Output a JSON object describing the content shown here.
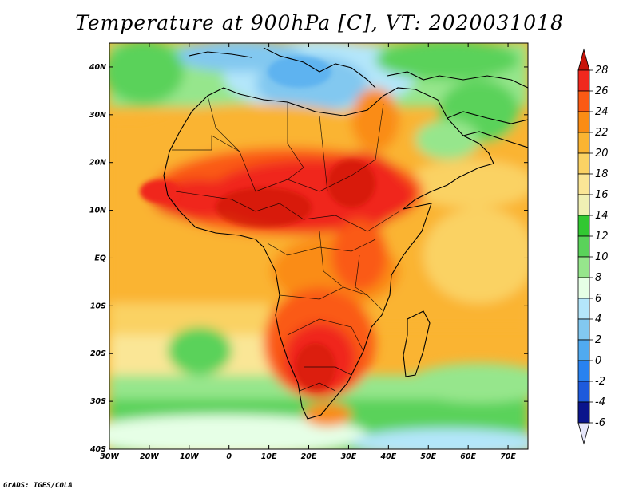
{
  "title": "Temperature at 900hPa [C], VT: 2020031018",
  "credit": "GrADS: IGES/COLA",
  "map": {
    "lon_range": [
      -30,
      75
    ],
    "lat_range": [
      -40,
      45
    ],
    "lon_ticks": [
      {
        "value": -30,
        "label": "30W"
      },
      {
        "value": -20,
        "label": "20W"
      },
      {
        "value": -10,
        "label": "10W"
      },
      {
        "value": 0,
        "label": "0"
      },
      {
        "value": 10,
        "label": "10E"
      },
      {
        "value": 20,
        "label": "20E"
      },
      {
        "value": 30,
        "label": "30E"
      },
      {
        "value": 40,
        "label": "40E"
      },
      {
        "value": 50,
        "label": "50E"
      },
      {
        "value": 60,
        "label": "60E"
      },
      {
        "value": 70,
        "label": "70E"
      }
    ],
    "lat_ticks": [
      {
        "value": 40,
        "label": "40N"
      },
      {
        "value": 30,
        "label": "30N"
      },
      {
        "value": 20,
        "label": "20N"
      },
      {
        "value": 10,
        "label": "10N"
      },
      {
        "value": 0,
        "label": "EQ"
      },
      {
        "value": -10,
        "label": "10S"
      },
      {
        "value": -20,
        "label": "20S"
      },
      {
        "value": -30,
        "label": "30S"
      },
      {
        "value": -40,
        "label": "40S"
      }
    ]
  },
  "colorbar": {
    "levels": [
      "28",
      "26",
      "24",
      "22",
      "20",
      "18",
      "16",
      "14",
      "12",
      "10",
      "8",
      "6",
      "4",
      "2",
      "0",
      "-2",
      "-4",
      "-6"
    ],
    "colors": [
      "#f0281e",
      "#fa5a14",
      "#fa8c14",
      "#fab432",
      "#fad264",
      "#fae696",
      "#f0f0b4",
      "#32c832",
      "#5ad25a",
      "#96e68c",
      "#e6ffe6",
      "#b4e6fa",
      "#82c8f0",
      "#50aaf0",
      "#2882f0",
      "#1e5adc",
      "#1432b4",
      "#0a148c"
    ],
    "top_color": "#c8140a",
    "bottom_color": "#e6e6fa"
  }
}
